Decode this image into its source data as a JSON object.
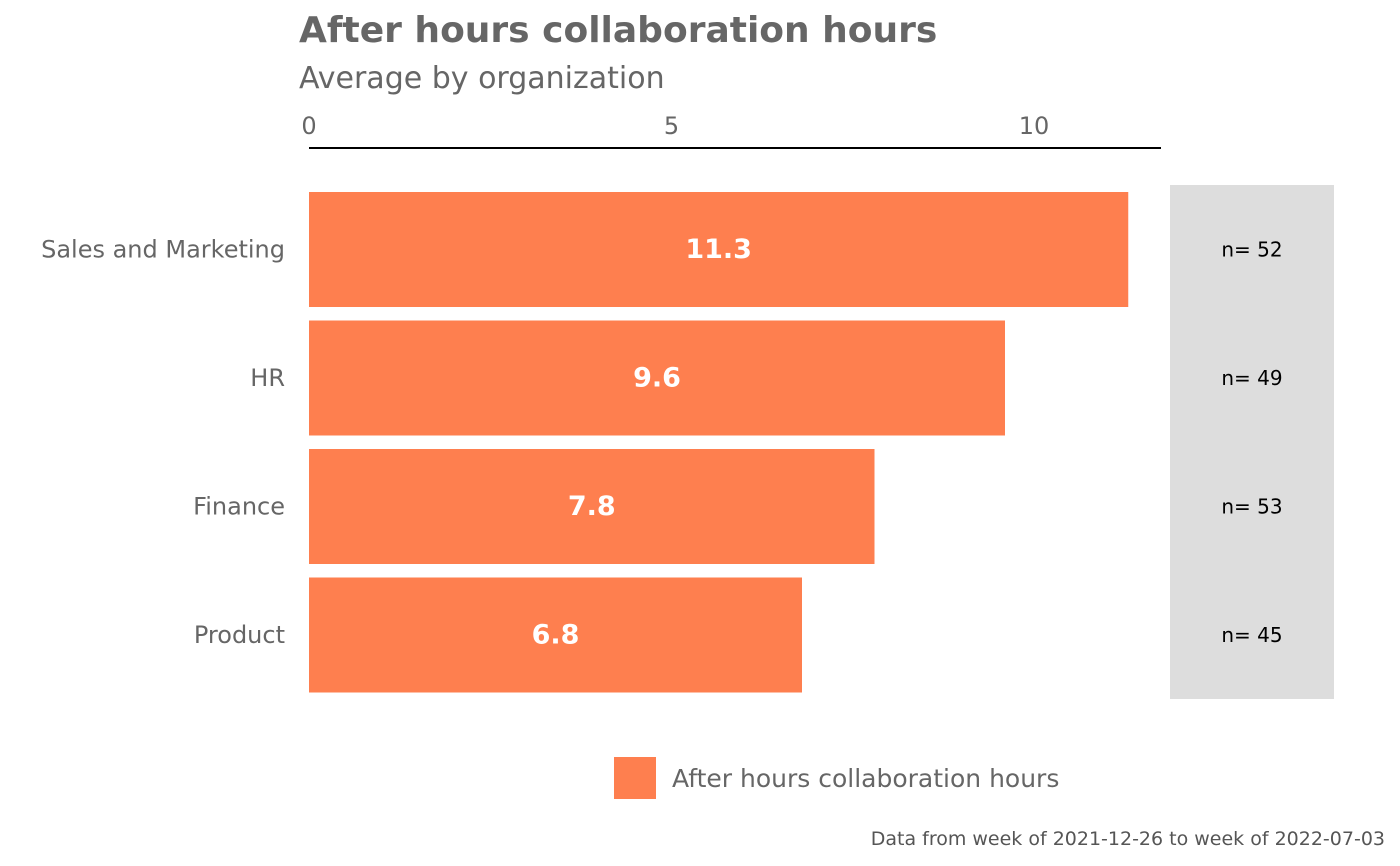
{
  "chart_data": {
    "type": "bar",
    "orientation": "horizontal",
    "title": "After hours collaboration hours",
    "subtitle": "Average by organization",
    "categories": [
      "Sales and Marketing",
      "HR",
      "Finance",
      "Product"
    ],
    "values": [
      11.3,
      9.6,
      7.8,
      6.8
    ],
    "value_labels": [
      "11.3",
      "9.6",
      "7.8",
      "6.8"
    ],
    "n_labels": [
      "n= 52",
      "n= 49",
      "n= 53",
      "n= 45"
    ],
    "x_ticks": [
      0,
      5,
      10
    ],
    "x_tick_labels": [
      "0",
      "5",
      "10"
    ],
    "xlim": [
      0,
      11.75
    ],
    "xlabel": "",
    "ylabel": "",
    "axis_position": "top",
    "grid": false,
    "legend": {
      "position": "bottom",
      "entries": [
        "After hours collaboration hours"
      ]
    },
    "caption": "Data from week of 2021-12-26 to week of 2022-07-03",
    "colors": {
      "bar": "#FE7F4F",
      "n_panel": "#DDDDDD",
      "text": "#666666",
      "axis_line": "#000000"
    }
  }
}
